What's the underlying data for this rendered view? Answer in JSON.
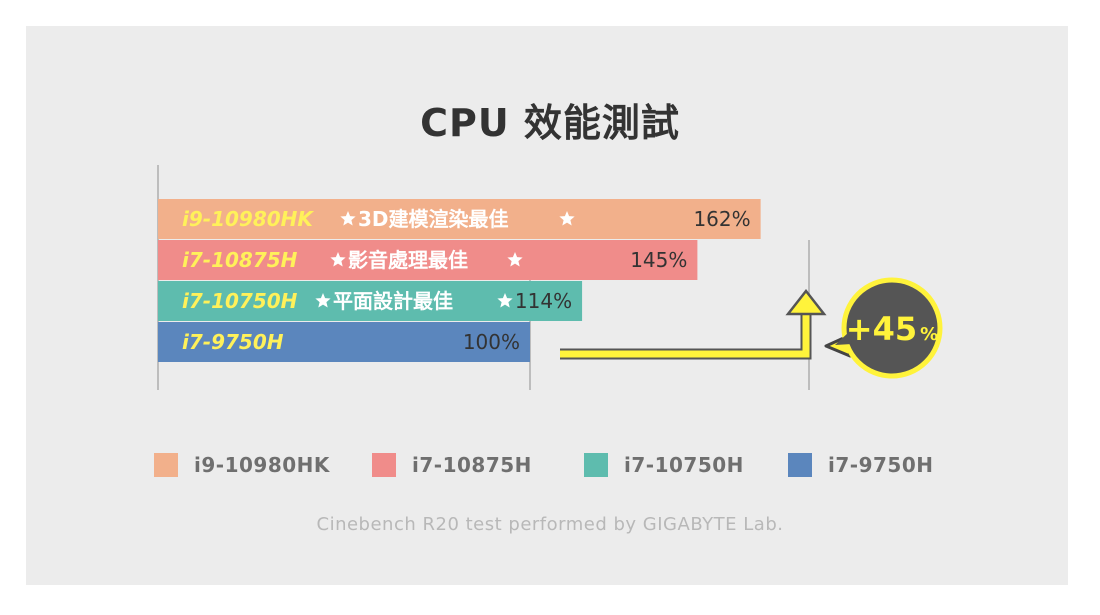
{
  "colors": {
    "panel": "#ececec",
    "bar_i9_10980hk": "#f2b08b",
    "bar_i7_10875h": "#f08c8a",
    "bar_i7_10750h": "#5ebcae",
    "bar_i7_9750h": "#5b86bd",
    "label_yellow": "#fff15a",
    "arrow_yellow": "#fff33b",
    "arrow_outline": "#555555"
  },
  "chart_data": {
    "type": "bar",
    "orientation": "horizontal",
    "title": "CPU 效能測試",
    "xlim": [
      0,
      180
    ],
    "grid": true,
    "legend_position": "bottom",
    "categories": [
      "i9-10980HK",
      "i7-10875H",
      "i7-10750H",
      "i7-9750H"
    ],
    "values": [
      162,
      145,
      114,
      100
    ],
    "value_labels": [
      "162%",
      "145%",
      "114%",
      "100%"
    ],
    "badges": [
      "3D建模渲染最佳",
      "影音處理最佳",
      "平面設計最佳",
      ""
    ],
    "annotation": {
      "text_main": "+45",
      "text_unit": "%"
    },
    "caption": "Cinebench R20 test performed by GIGABYTE Lab."
  }
}
